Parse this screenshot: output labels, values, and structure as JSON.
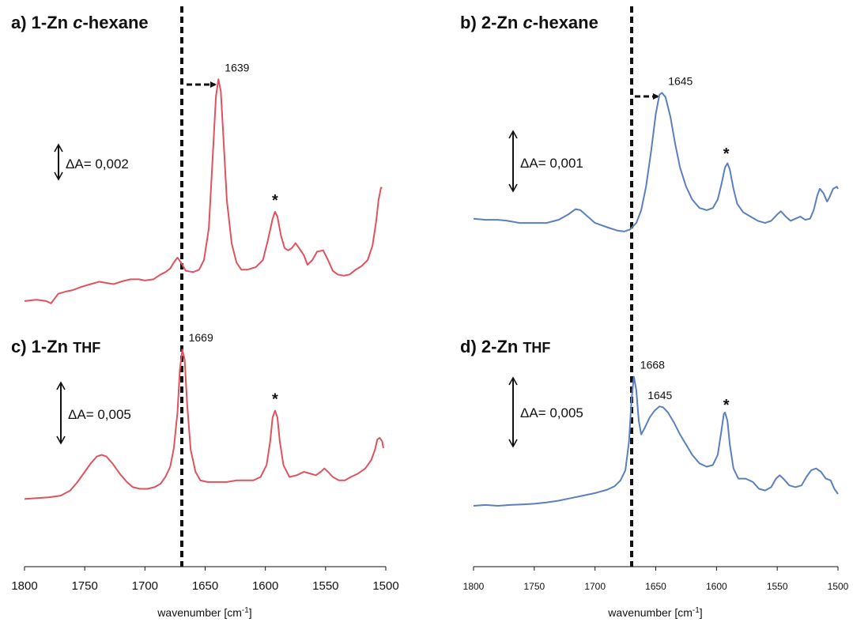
{
  "chart_data": [
    {
      "type": "line",
      "panel": "a",
      "title_prefix": "a) 1-Zn ",
      "title_solvent": "c",
      "title_suffix": "-hexane",
      "xlabel": "wavenumber [cm",
      "xlabel_sup": "-1",
      "xlabel_close": "]",
      "xlim": [
        1800,
        1500
      ],
      "xticks": [
        "1800",
        "1750",
        "1700",
        "1650",
        "1600",
        "1550",
        "1500"
      ],
      "color": "#e0525e",
      "scale_bar": "ΔA= 0,002",
      "peak_label": "1639",
      "peak_at": 1639,
      "star": "*",
      "star_at": 1592,
      "points": [
        [
          1800,
          0.03
        ],
        [
          1790,
          0.035
        ],
        [
          1782,
          0.03
        ],
        [
          1778,
          0.02
        ],
        [
          1772,
          0.06
        ],
        [
          1765,
          0.07
        ],
        [
          1760,
          0.075
        ],
        [
          1752,
          0.09
        ],
        [
          1745,
          0.1
        ],
        [
          1738,
          0.11
        ],
        [
          1732,
          0.105
        ],
        [
          1726,
          0.1
        ],
        [
          1720,
          0.11
        ],
        [
          1712,
          0.12
        ],
        [
          1705,
          0.12
        ],
        [
          1700,
          0.115
        ],
        [
          1693,
          0.12
        ],
        [
          1687,
          0.14
        ],
        [
          1683,
          0.15
        ],
        [
          1679,
          0.165
        ],
        [
          1676,
          0.19
        ],
        [
          1673,
          0.21
        ],
        [
          1670,
          0.19
        ],
        [
          1666,
          0.155
        ],
        [
          1660,
          0.15
        ],
        [
          1655,
          0.16
        ],
        [
          1651,
          0.2
        ],
        [
          1647,
          0.33
        ],
        [
          1644,
          0.6
        ],
        [
          1641,
          0.88
        ],
        [
          1639,
          0.95
        ],
        [
          1637,
          0.9
        ],
        [
          1635,
          0.72
        ],
        [
          1632,
          0.45
        ],
        [
          1628,
          0.27
        ],
        [
          1624,
          0.19
        ],
        [
          1620,
          0.16
        ],
        [
          1615,
          0.16
        ],
        [
          1608,
          0.17
        ],
        [
          1602,
          0.2
        ],
        [
          1598,
          0.28
        ],
        [
          1594,
          0.37
        ],
        [
          1592,
          0.4
        ],
        [
          1590,
          0.38
        ],
        [
          1587,
          0.3
        ],
        [
          1584,
          0.25
        ],
        [
          1581,
          0.24
        ],
        [
          1578,
          0.25
        ],
        [
          1575,
          0.27
        ],
        [
          1572,
          0.25
        ],
        [
          1568,
          0.22
        ],
        [
          1565,
          0.18
        ],
        [
          1561,
          0.2
        ],
        [
          1557,
          0.235
        ],
        [
          1552,
          0.24
        ],
        [
          1548,
          0.2
        ],
        [
          1544,
          0.155
        ],
        [
          1540,
          0.14
        ],
        [
          1535,
          0.135
        ],
        [
          1530,
          0.14
        ],
        [
          1525,
          0.16
        ],
        [
          1520,
          0.175
        ],
        [
          1515,
          0.2
        ],
        [
          1511,
          0.26
        ],
        [
          1508,
          0.36
        ],
        [
          1506,
          0.45
        ],
        [
          1504,
          0.5
        ],
        [
          1503,
          0.5
        ]
      ]
    },
    {
      "type": "line",
      "panel": "b",
      "title_prefix": "b) 2-Zn ",
      "title_solvent": "c",
      "title_suffix": "-hexane",
      "xlabel": "wavenumber [cm",
      "xlabel_sup": "-1",
      "xlabel_close": "]",
      "xlim": [
        1800,
        1500
      ],
      "xticks": [
        "1800",
        "1750",
        "1700",
        "1650",
        "1600",
        "1550",
        "1500"
      ],
      "color": "#5b7fbf",
      "scale_bar": "ΔA= 0,001",
      "peak_label": "1645",
      "peak_at": 1645,
      "star": "*",
      "star_at": 1592,
      "points": [
        [
          1800,
          0.29
        ],
        [
          1790,
          0.285
        ],
        [
          1780,
          0.285
        ],
        [
          1772,
          0.28
        ],
        [
          1762,
          0.27
        ],
        [
          1750,
          0.27
        ],
        [
          1740,
          0.27
        ],
        [
          1730,
          0.285
        ],
        [
          1722,
          0.31
        ],
        [
          1716,
          0.335
        ],
        [
          1712,
          0.33
        ],
        [
          1706,
          0.3
        ],
        [
          1700,
          0.27
        ],
        [
          1690,
          0.25
        ],
        [
          1682,
          0.235
        ],
        [
          1676,
          0.23
        ],
        [
          1671,
          0.24
        ],
        [
          1666,
          0.27
        ],
        [
          1662,
          0.33
        ],
        [
          1658,
          0.44
        ],
        [
          1654,
          0.6
        ],
        [
          1650,
          0.78
        ],
        [
          1647,
          0.87
        ],
        [
          1645,
          0.88
        ],
        [
          1642,
          0.86
        ],
        [
          1638,
          0.77
        ],
        [
          1634,
          0.64
        ],
        [
          1630,
          0.53
        ],
        [
          1625,
          0.44
        ],
        [
          1620,
          0.38
        ],
        [
          1614,
          0.34
        ],
        [
          1608,
          0.33
        ],
        [
          1603,
          0.34
        ],
        [
          1599,
          0.38
        ],
        [
          1596,
          0.45
        ],
        [
          1593,
          0.53
        ],
        [
          1591,
          0.55
        ],
        [
          1589,
          0.52
        ],
        [
          1586,
          0.43
        ],
        [
          1583,
          0.36
        ],
        [
          1578,
          0.32
        ],
        [
          1572,
          0.3
        ],
        [
          1566,
          0.28
        ],
        [
          1560,
          0.27
        ],
        [
          1555,
          0.28
        ],
        [
          1550,
          0.31
        ],
        [
          1547,
          0.325
        ],
        [
          1543,
          0.3
        ],
        [
          1539,
          0.28
        ],
        [
          1535,
          0.29
        ],
        [
          1531,
          0.3
        ],
        [
          1527,
          0.285
        ],
        [
          1523,
          0.29
        ],
        [
          1520,
          0.33
        ],
        [
          1517,
          0.4
        ],
        [
          1515,
          0.43
        ],
        [
          1512,
          0.41
        ],
        [
          1509,
          0.37
        ],
        [
          1507,
          0.39
        ],
        [
          1504,
          0.43
        ],
        [
          1501,
          0.44
        ],
        [
          1500,
          0.43
        ]
      ]
    },
    {
      "type": "line",
      "panel": "c",
      "title_prefix": "c) 1-Zn ",
      "title_solvent": "THF",
      "title_suffix": "",
      "xlim": [
        1800,
        1500
      ],
      "color": "#e0525e",
      "scale_bar": "ΔA= 0,005",
      "peak_label": "1669",
      "peak_at": 1669,
      "star": "*",
      "star_at": 1592,
      "points": [
        [
          1800,
          0.04
        ],
        [
          1790,
          0.045
        ],
        [
          1780,
          0.05
        ],
        [
          1770,
          0.06
        ],
        [
          1762,
          0.09
        ],
        [
          1756,
          0.14
        ],
        [
          1750,
          0.2
        ],
        [
          1745,
          0.25
        ],
        [
          1740,
          0.29
        ],
        [
          1736,
          0.3
        ],
        [
          1732,
          0.29
        ],
        [
          1727,
          0.25
        ],
        [
          1721,
          0.19
        ],
        [
          1715,
          0.14
        ],
        [
          1710,
          0.11
        ],
        [
          1704,
          0.1
        ],
        [
          1698,
          0.1
        ],
        [
          1692,
          0.11
        ],
        [
          1687,
          0.13
        ],
        [
          1683,
          0.17
        ],
        [
          1679,
          0.23
        ],
        [
          1676,
          0.34
        ],
        [
          1673,
          0.55
        ],
        [
          1671,
          0.8
        ],
        [
          1669,
          0.92
        ],
        [
          1667,
          0.86
        ],
        [
          1665,
          0.6
        ],
        [
          1662,
          0.33
        ],
        [
          1658,
          0.2
        ],
        [
          1654,
          0.15
        ],
        [
          1648,
          0.14
        ],
        [
          1640,
          0.14
        ],
        [
          1632,
          0.14
        ],
        [
          1624,
          0.15
        ],
        [
          1617,
          0.15
        ],
        [
          1610,
          0.15
        ],
        [
          1604,
          0.17
        ],
        [
          1599,
          0.24
        ],
        [
          1596,
          0.38
        ],
        [
          1594,
          0.52
        ],
        [
          1592,
          0.56
        ],
        [
          1590,
          0.52
        ],
        [
          1588,
          0.38
        ],
        [
          1585,
          0.24
        ],
        [
          1580,
          0.17
        ],
        [
          1574,
          0.18
        ],
        [
          1568,
          0.2
        ],
        [
          1563,
          0.19
        ],
        [
          1558,
          0.18
        ],
        [
          1554,
          0.2
        ],
        [
          1551,
          0.22
        ],
        [
          1548,
          0.2
        ],
        [
          1544,
          0.17
        ],
        [
          1539,
          0.15
        ],
        [
          1534,
          0.15
        ],
        [
          1529,
          0.17
        ],
        [
          1523,
          0.19
        ],
        [
          1517,
          0.22
        ],
        [
          1512,
          0.27
        ],
        [
          1509,
          0.33
        ],
        [
          1507,
          0.39
        ],
        [
          1505,
          0.4
        ],
        [
          1503,
          0.38
        ],
        [
          1502,
          0.34
        ]
      ]
    },
    {
      "type": "line",
      "panel": "d",
      "title_prefix": "d) 2-Zn ",
      "title_solvent": "THF",
      "title_suffix": "",
      "xlim": [
        1800,
        1500
      ],
      "color": "#5b7fbf",
      "scale_bar": "ΔA= 0,005",
      "peak_label": "1668",
      "peak_label_2": "1645",
      "peak_at": 1668,
      "peak_at_2": 1645,
      "star": "*",
      "star_at": 1592,
      "points": [
        [
          1800,
          0.0
        ],
        [
          1790,
          0.005
        ],
        [
          1780,
          0.0
        ],
        [
          1770,
          0.005
        ],
        [
          1760,
          0.008
        ],
        [
          1750,
          0.012
        ],
        [
          1740,
          0.02
        ],
        [
          1730,
          0.03
        ],
        [
          1720,
          0.045
        ],
        [
          1710,
          0.06
        ],
        [
          1700,
          0.075
        ],
        [
          1690,
          0.095
        ],
        [
          1684,
          0.115
        ],
        [
          1679,
          0.15
        ],
        [
          1675,
          0.21
        ],
        [
          1672,
          0.38
        ],
        [
          1670,
          0.62
        ],
        [
          1668,
          0.76
        ],
        [
          1666,
          0.68
        ],
        [
          1664,
          0.5
        ],
        [
          1662,
          0.42
        ],
        [
          1659,
          0.46
        ],
        [
          1655,
          0.52
        ],
        [
          1651,
          0.56
        ],
        [
          1647,
          0.585
        ],
        [
          1644,
          0.58
        ],
        [
          1640,
          0.55
        ],
        [
          1635,
          0.49
        ],
        [
          1630,
          0.42
        ],
        [
          1625,
          0.36
        ],
        [
          1620,
          0.3
        ],
        [
          1614,
          0.25
        ],
        [
          1608,
          0.23
        ],
        [
          1603,
          0.24
        ],
        [
          1599,
          0.3
        ],
        [
          1596,
          0.44
        ],
        [
          1594,
          0.54
        ],
        [
          1593,
          0.55
        ],
        [
          1591,
          0.5
        ],
        [
          1589,
          0.36
        ],
        [
          1586,
          0.22
        ],
        [
          1582,
          0.16
        ],
        [
          1576,
          0.16
        ],
        [
          1570,
          0.14
        ],
        [
          1565,
          0.1
        ],
        [
          1560,
          0.09
        ],
        [
          1555,
          0.11
        ],
        [
          1551,
          0.16
        ],
        [
          1548,
          0.18
        ],
        [
          1545,
          0.16
        ],
        [
          1540,
          0.12
        ],
        [
          1535,
          0.11
        ],
        [
          1530,
          0.12
        ],
        [
          1526,
          0.17
        ],
        [
          1522,
          0.21
        ],
        [
          1518,
          0.22
        ],
        [
          1514,
          0.2
        ],
        [
          1510,
          0.16
        ],
        [
          1506,
          0.15
        ],
        [
          1503,
          0.1
        ],
        [
          1500,
          0.07
        ]
      ]
    }
  ]
}
